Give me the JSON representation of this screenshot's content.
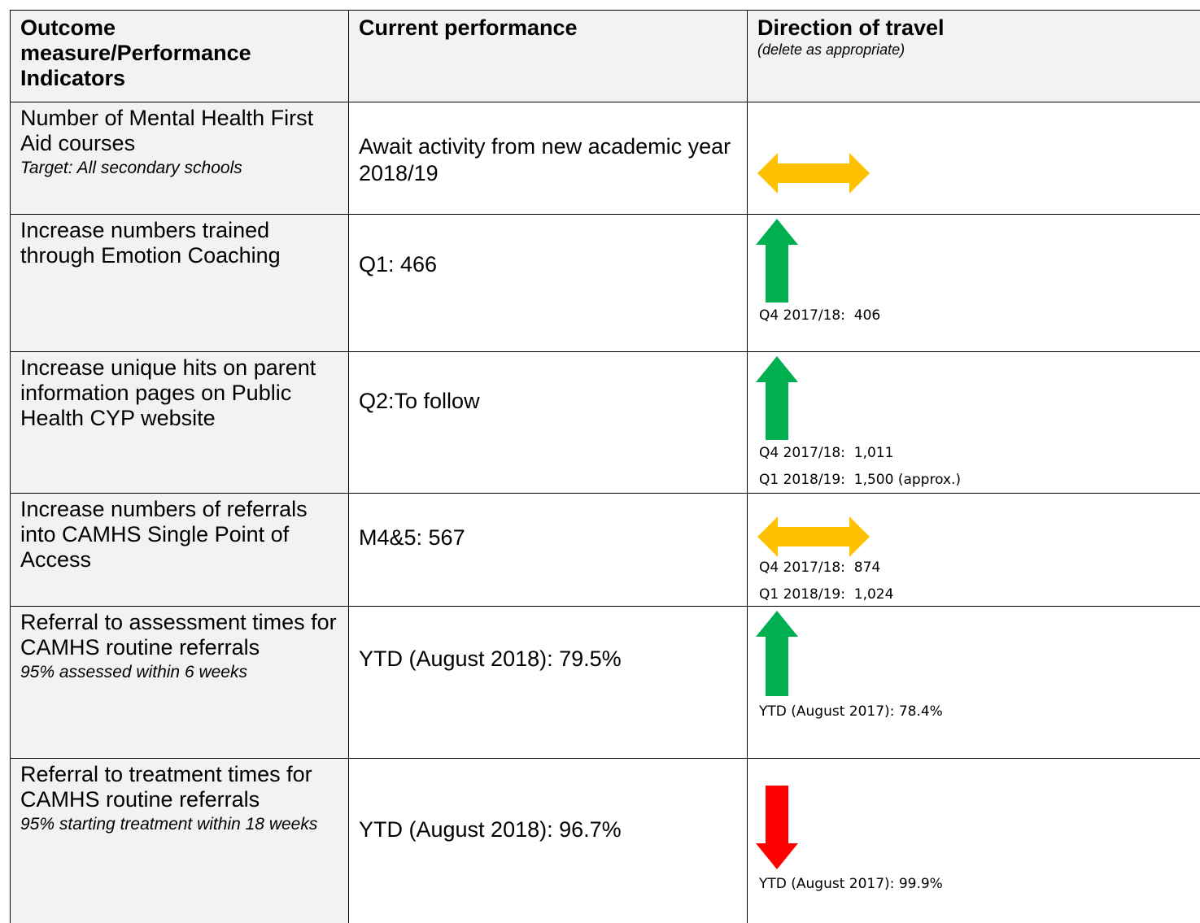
{
  "header": {
    "columns": [
      "Outcome measure/Performance Indicators",
      "Current performance",
      "Direction of travel"
    ],
    "note": "(delete as appropriate)"
  },
  "rows": [
    {
      "measure": "Number of Mental Health First Aid courses",
      "target": "Target: All secondary schools",
      "current": "Await activity from new academic year 2018/19",
      "notes": []
    },
    {
      "measure": "Increase numbers trained through Emotion Coaching",
      "current": "Q1: 466",
      "notes": [
        "Q4 2017/18:  406"
      ]
    },
    {
      "measure": "Increase unique hits on parent information pages on Public Health CYP website",
      "current": "Q2:To follow",
      "notes": [
        "Q4 2017/18:  1,011",
        "Q1 2018/19:  1,500 (approx.)"
      ]
    },
    {
      "measure": "Increase numbers of referrals into CAMHS Single Point of Access",
      "current": "M4&5:  567",
      "notes": [
        "Q4 2017/18:  874",
        "Q1 2018/19:  1,024"
      ]
    },
    {
      "measure": "Referral to assessment times for CAMHS routine referrals",
      "target": "95% assessed within 6 weeks",
      "current": "YTD (August 2018): 79.5%",
      "notes": [
        "YTD (August 2017): 78.4%"
      ]
    },
    {
      "measure": "Referral to treatment times for CAMHS routine referrals",
      "target": "95% starting treatment within 18 weeks",
      "current": "YTD (August 2018): 96.7%",
      "notes": [
        "YTD (August 2017): 99.9%"
      ]
    }
  ]
}
